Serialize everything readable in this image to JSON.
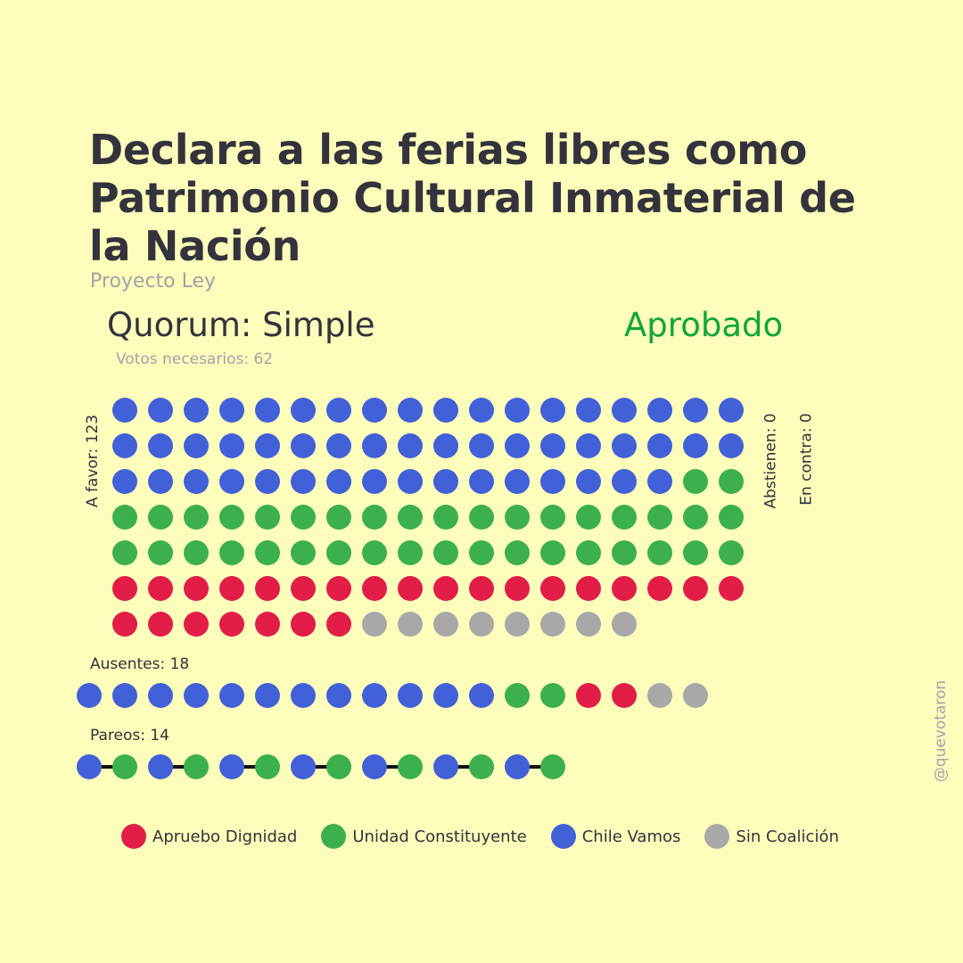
{
  "header": {
    "title": "Declara a las ferias libres como Patrimonio Cultural Inmaterial de la Nación",
    "subtitle": "Proyecto Ley",
    "quorum": "Quorum: Simple",
    "result": "Aprobado",
    "votes_needed": "Votos necesarios: 62"
  },
  "labels": {
    "favor": "A favor: 123",
    "abstain": "Abstienen: 0",
    "against": "En contra: 0",
    "absent": "Ausentes: 18",
    "paired": "Pareos: 14",
    "watermark": "@quevotaron"
  },
  "colors": {
    "background": "#fdfdbb",
    "apruebo_dignidad": "#e11d48",
    "unidad_constituyente": "#3cb04c",
    "chile_vamos": "#4260d8",
    "sin_coalicion": "#a8a8a8",
    "approved": "#10a63a"
  },
  "legend": [
    {
      "key": "apruebo_dignidad",
      "label": "Apruebo Dignidad",
      "color": "#e11d48"
    },
    {
      "key": "unidad_constituyente",
      "label": "Unidad Constituyente",
      "color": "#3cb04c"
    },
    {
      "key": "chile_vamos",
      "label": "Chile Vamos",
      "color": "#4260d8"
    },
    {
      "key": "sin_coalicion",
      "label": "Sin Coalición",
      "color": "#a8a8a8"
    }
  ],
  "chart_data": {
    "type": "waffle",
    "title": "Declara a las ferias libres como Patrimonio Cultural Inmaterial de la Nación",
    "categories": [
      "Chile Vamos",
      "Unidad Constituyente",
      "Apruebo Dignidad",
      "Sin Coalición"
    ],
    "series": [
      {
        "name": "A favor",
        "total": 123,
        "values": {
          "Chile Vamos": 52,
          "Unidad Constituyente": 38,
          "Apruebo Dignidad": 25,
          "Sin Coalición": 8
        }
      },
      {
        "name": "Abstienen",
        "total": 0,
        "values": {}
      },
      {
        "name": "En contra",
        "total": 0,
        "values": {}
      },
      {
        "name": "Ausentes",
        "total": 18,
        "values": {
          "Chile Vamos": 12,
          "Unidad Constituyente": 2,
          "Apruebo Dignidad": 2,
          "Sin Coalición": 2
        }
      },
      {
        "name": "Pareos",
        "total": 14,
        "values": {
          "Chile Vamos": 7,
          "Unidad Constituyente": 7
        }
      }
    ],
    "favor_per_row": 18,
    "pairs": [
      [
        "Chile Vamos",
        "Unidad Constituyente"
      ],
      [
        "Chile Vamos",
        "Unidad Constituyente"
      ],
      [
        "Chile Vamos",
        "Unidad Constituyente"
      ],
      [
        "Chile Vamos",
        "Unidad Constituyente"
      ],
      [
        "Chile Vamos",
        "Unidad Constituyente"
      ],
      [
        "Chile Vamos",
        "Unidad Constituyente"
      ],
      [
        "Chile Vamos",
        "Unidad Constituyente"
      ]
    ]
  }
}
